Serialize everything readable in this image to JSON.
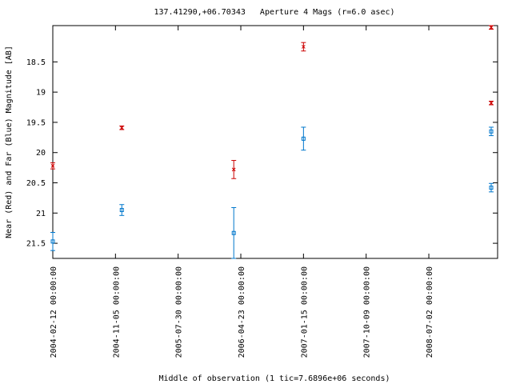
{
  "chart_data": {
    "type": "scatter",
    "title": "137.41290,+06.70343   Aperture 4 Mags (r=6.0 asec)",
    "xlabel": "Middle of observation (1 tic=7.6896e+06 seconds)",
    "ylabel": "Near (Red) and Far (Blue) Magnitude [AB]",
    "y_inverted": true,
    "ylim": [
      21.75,
      17.9
    ],
    "xlim": [
      "2004-02-12",
      "2009-04-21"
    ],
    "yticks": [
      "18.5",
      "19",
      "19.5",
      "20",
      "20.5",
      "21",
      "21.5"
    ],
    "xticks": [
      "2004-02-12 00:00:00",
      "2004-11-05 00:00:00",
      "2005-07-30 00:00:00",
      "2006-04-23 00:00:00",
      "2007-01-15 00:00:00",
      "2007-10-09 00:00:00",
      "2008-07-02 00:00:00"
    ],
    "grid": false,
    "series": [
      {
        "name": "Near (Red)",
        "color": "#cc0000",
        "marker": "x",
        "points": [
          {
            "x": "2004-02-12",
            "y": 20.22,
            "err": 0.05
          },
          {
            "x": "2004-12-02",
            "y": 19.59,
            "err": 0.03
          },
          {
            "x": "2006-03-24",
            "y": 20.28,
            "err": 0.15
          },
          {
            "x": "2007-01-15",
            "y": 18.25,
            "err": 0.07
          },
          {
            "x": "2009-04-19",
            "y": 17.93,
            "err": 0.03
          },
          {
            "x": "2009-04-19",
            "y": 19.18,
            "err": 0.03
          }
        ]
      },
      {
        "name": "Far (Blue)",
        "color": "#0077cc",
        "marker": "square",
        "points": [
          {
            "x": "2004-02-12",
            "y": 21.47,
            "err": 0.15
          },
          {
            "x": "2004-12-02",
            "y": 20.95,
            "err": 0.09
          },
          {
            "x": "2006-03-24",
            "y": 21.33,
            "err": 0.42
          },
          {
            "x": "2007-01-15",
            "y": 19.77,
            "err": 0.19
          },
          {
            "x": "2009-04-19",
            "y": 19.65,
            "err": 0.07
          },
          {
            "x": "2009-04-19",
            "y": 20.58,
            "err": 0.07
          }
        ]
      }
    ]
  }
}
